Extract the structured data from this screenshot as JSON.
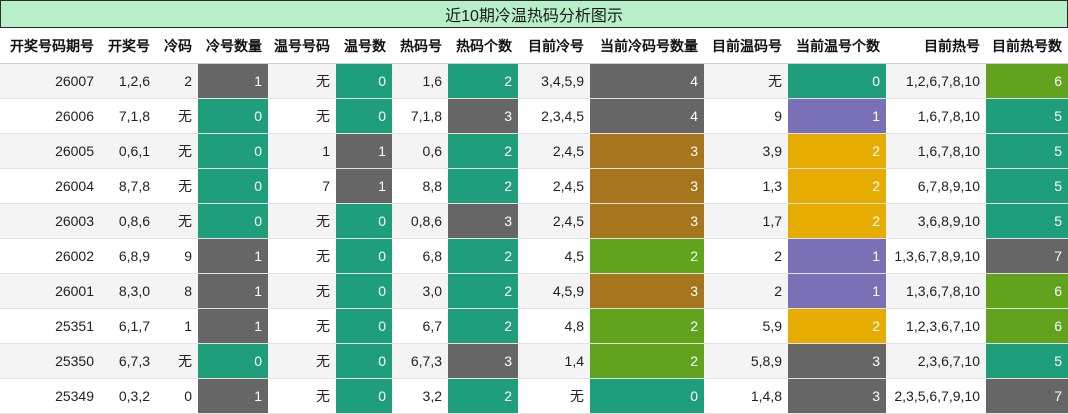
{
  "title": "近10期冷温热码分析图示",
  "colors": {
    "0": "#1e9e7a",
    "1": "#666666",
    "2": "#62a31e",
    "3": "#a5761c",
    "4": "#666666",
    "5": "#1e9e7a",
    "6": "#62a31e",
    "7": "#666666",
    "temp_1": "#7a70b6",
    "temp_2": "#e6ad00",
    "temp_3": "#666666",
    "temp_0": "#1e9e7a"
  },
  "columns": [
    {
      "key": "period",
      "label": "开奖号码期号",
      "width": 100
    },
    {
      "key": "draw",
      "label": "开奖号",
      "width": 56
    },
    {
      "key": "cold",
      "label": "冷码",
      "width": 42
    },
    {
      "key": "cold_count",
      "label": "冷号数量",
      "width": 70
    },
    {
      "key": "warm",
      "label": "温号号码",
      "width": 68
    },
    {
      "key": "warm_count",
      "label": "温号数",
      "width": 56
    },
    {
      "key": "hot",
      "label": "热码号",
      "width": 56
    },
    {
      "key": "hot_count",
      "label": "热码个数",
      "width": 70
    },
    {
      "key": "cur_cold",
      "label": "目前冷号",
      "width": 72
    },
    {
      "key": "cur_cold_count",
      "label": "当前冷码号数量",
      "width": 114
    },
    {
      "key": "cur_warm",
      "label": "目前温码号",
      "width": 84
    },
    {
      "key": "cur_warm_count",
      "label": "当前温号个数",
      "width": 98
    },
    {
      "key": "cur_hot",
      "label": "目前热号",
      "width": 100
    },
    {
      "key": "cur_hot_count",
      "label": "目前热号数",
      "width": 82
    }
  ],
  "rows": [
    {
      "period": "26007",
      "draw": "1,2,6",
      "cold": "2",
      "cold_count": "1",
      "warm": "无",
      "warm_count": "0",
      "hot": "1,6",
      "hot_count": "2",
      "cur_cold": "3,4,5,9",
      "cur_cold_count": "4",
      "cur_warm": "无",
      "cur_warm_count": "0",
      "cur_hot": "1,2,6,7,8,10",
      "cur_hot_count": "6"
    },
    {
      "period": "26006",
      "draw": "7,1,8",
      "cold": "无",
      "cold_count": "0",
      "warm": "无",
      "warm_count": "0",
      "hot": "7,1,8",
      "hot_count": "3",
      "cur_cold": "2,3,4,5",
      "cur_cold_count": "4",
      "cur_warm": "9",
      "cur_warm_count": "1",
      "cur_hot": "1,6,7,8,10",
      "cur_hot_count": "5"
    },
    {
      "period": "26005",
      "draw": "0,6,1",
      "cold": "无",
      "cold_count": "0",
      "warm": "1",
      "warm_count": "1",
      "hot": "0,6",
      "hot_count": "2",
      "cur_cold": "2,4,5",
      "cur_cold_count": "3",
      "cur_warm": "3,9",
      "cur_warm_count": "2",
      "cur_hot": "1,6,7,8,10",
      "cur_hot_count": "5"
    },
    {
      "period": "26004",
      "draw": "8,7,8",
      "cold": "无",
      "cold_count": "0",
      "warm": "7",
      "warm_count": "1",
      "hot": "8,8",
      "hot_count": "2",
      "cur_cold": "2,4,5",
      "cur_cold_count": "3",
      "cur_warm": "1,3",
      "cur_warm_count": "2",
      "cur_hot": "6,7,8,9,10",
      "cur_hot_count": "5"
    },
    {
      "period": "26003",
      "draw": "0,8,6",
      "cold": "无",
      "cold_count": "0",
      "warm": "无",
      "warm_count": "0",
      "hot": "0,8,6",
      "hot_count": "3",
      "cur_cold": "2,4,5",
      "cur_cold_count": "3",
      "cur_warm": "1,7",
      "cur_warm_count": "2",
      "cur_hot": "3,6,8,9,10",
      "cur_hot_count": "5"
    },
    {
      "period": "26002",
      "draw": "6,8,9",
      "cold": "9",
      "cold_count": "1",
      "warm": "无",
      "warm_count": "0",
      "hot": "6,8",
      "hot_count": "2",
      "cur_cold": "4,5",
      "cur_cold_count": "2",
      "cur_warm": "2",
      "cur_warm_count": "1",
      "cur_hot": "1,3,6,7,8,9,10",
      "cur_hot_count": "7"
    },
    {
      "period": "26001",
      "draw": "8,3,0",
      "cold": "8",
      "cold_count": "1",
      "warm": "无",
      "warm_count": "0",
      "hot": "3,0",
      "hot_count": "2",
      "cur_cold": "4,5,9",
      "cur_cold_count": "3",
      "cur_warm": "2",
      "cur_warm_count": "1",
      "cur_hot": "1,3,6,7,8,10",
      "cur_hot_count": "6"
    },
    {
      "period": "25351",
      "draw": "6,1,7",
      "cold": "1",
      "cold_count": "1",
      "warm": "无",
      "warm_count": "0",
      "hot": "6,7",
      "hot_count": "2",
      "cur_cold": "4,8",
      "cur_cold_count": "2",
      "cur_warm": "5,9",
      "cur_warm_count": "2",
      "cur_hot": "1,2,3,6,7,10",
      "cur_hot_count": "6"
    },
    {
      "period": "25350",
      "draw": "6,7,3",
      "cold": "无",
      "cold_count": "0",
      "warm": "无",
      "warm_count": "0",
      "hot": "6,7,3",
      "hot_count": "3",
      "cur_cold": "1,4",
      "cur_cold_count": "2",
      "cur_warm": "5,8,9",
      "cur_warm_count": "3",
      "cur_hot": "2,3,6,7,10",
      "cur_hot_count": "5"
    },
    {
      "period": "25349",
      "draw": "0,3,2",
      "cold": "0",
      "cold_count": "1",
      "warm": "无",
      "warm_count": "0",
      "hot": "3,2",
      "hot_count": "2",
      "cur_cold": "无",
      "cur_cold_count": "0",
      "cur_warm": "1,4,8",
      "cur_warm_count": "3",
      "cur_hot": "2,3,5,6,7,9,10",
      "cur_hot_count": "7"
    }
  ]
}
